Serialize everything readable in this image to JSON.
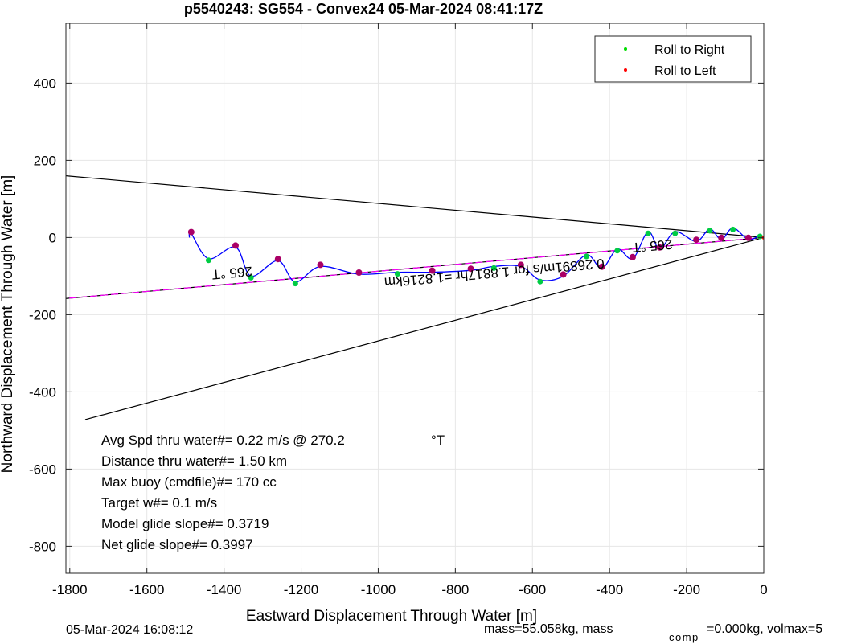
{
  "chart_data": {
    "type": "line",
    "title": "p5540243: SG554 - Convex24 05-Mar-2024 08:41:17Z",
    "xlabel": "Eastward Displacement Through Water [m]",
    "ylabel": "Northward Displacement Through Water [m]",
    "xlim": [
      -1810,
      0
    ],
    "ylim": [
      -870,
      555
    ],
    "xticks": [
      -1800,
      -1600,
      -1400,
      -1200,
      -1000,
      -800,
      -600,
      -400,
      -200,
      0
    ],
    "yticks": [
      -800,
      -600,
      -400,
      -200,
      0,
      200,
      400
    ],
    "grid": true,
    "legend_position": "top-right",
    "legend": [
      {
        "label": "Roll to Right",
        "color": "#00dd00"
      },
      {
        "label": "Roll to Left",
        "color": "#ff0000"
      }
    ],
    "lines": [
      {
        "color": "#000000",
        "points": [
          [
            0,
            0
          ],
          [
            -1810,
            160
          ]
        ]
      },
      {
        "color": "#000000",
        "points": [
          [
            0,
            0
          ],
          [
            -1760,
            -472
          ]
        ]
      },
      {
        "color": "#000000",
        "points": [
          [
            0,
            0
          ],
          [
            -1810,
            -158
          ]
        ]
      },
      {
        "color": "#ff00ff",
        "dashed": true,
        "points": [
          [
            0,
            0
          ],
          [
            -1810,
            -158
          ]
        ]
      }
    ],
    "track": {
      "color": "#0000ff",
      "centerline": [
        [
          0,
          0
        ],
        [
          -100,
          0
        ],
        [
          -200,
          -5
        ],
        [
          -300,
          -25
        ],
        [
          -420,
          -55
        ],
        [
          -580,
          -90
        ],
        [
          -800,
          -100
        ],
        [
          -1000,
          -100
        ],
        [
          -1150,
          -90
        ],
        [
          -1300,
          -70
        ],
        [
          -1400,
          -30
        ],
        [
          -1490,
          0
        ]
      ],
      "peaks": [
        [
          -10,
          7
        ],
        [
          -40,
          -5
        ],
        [
          -80,
          25
        ],
        [
          -110,
          -5
        ],
        [
          -140,
          22
        ],
        [
          -175,
          -10
        ],
        [
          -230,
          15
        ],
        [
          -270,
          -30
        ],
        [
          -300,
          15
        ],
        [
          -340,
          -55
        ],
        [
          -380,
          -30
        ],
        [
          -420,
          -80
        ],
        [
          -460,
          -45
        ],
        [
          -520,
          -100
        ],
        [
          -580,
          -110
        ],
        [
          -630,
          -75
        ],
        [
          -700,
          -75
        ],
        [
          -760,
          -85
        ],
        [
          -860,
          -90
        ],
        [
          -950,
          -90
        ],
        [
          -1050,
          -95
        ],
        [
          -1150,
          -75
        ],
        [
          -1215,
          -115
        ],
        [
          -1260,
          -60
        ],
        [
          -1330,
          -100
        ],
        [
          -1370,
          -25
        ],
        [
          -1440,
          -55
        ],
        [
          -1485,
          10
        ],
        [
          -1490,
          0
        ]
      ],
      "roll_right_points": [
        [
          -10,
          7
        ],
        [
          -80,
          25
        ],
        [
          -140,
          22
        ],
        [
          -230,
          15
        ],
        [
          -300,
          15
        ],
        [
          -380,
          -30
        ],
        [
          -460,
          -45
        ],
        [
          -580,
          -110
        ],
        [
          -700,
          -75
        ],
        [
          -950,
          -90
        ],
        [
          -1215,
          -115
        ],
        [
          -1330,
          -100
        ],
        [
          -1440,
          -55
        ]
      ],
      "roll_left_points": [
        [
          -40,
          -5
        ],
        [
          -110,
          -5
        ],
        [
          -175,
          -10
        ],
        [
          -270,
          -30
        ],
        [
          -340,
          -55
        ],
        [
          -420,
          -80
        ],
        [
          -520,
          -100
        ],
        [
          -630,
          -75
        ],
        [
          -760,
          -85
        ],
        [
          -860,
          -90
        ],
        [
          -1050,
          -95
        ],
        [
          -1150,
          -75
        ],
        [
          -1260,
          -60
        ],
        [
          -1370,
          -25
        ],
        [
          -1485,
          10
        ]
      ]
    },
    "annotations": [
      {
        "text": "265 °T",
        "x": -290,
        "y": -10,
        "rotate": 175
      },
      {
        "text": "265 °T",
        "x": -1380,
        "y": -80,
        "rotate": 175
      },
      {
        "text": "0.26891m/s for 1.8817hr =1.8216km",
        "x": -700,
        "y": -80,
        "rotate": 175
      }
    ]
  },
  "stats": {
    "line1_label": "Avg Spd thru water#=  0.22 m/s @ 270.2",
    "line1_unit": "°T",
    "line2": "Distance thru water#=  1.50 km",
    "line3": "Max buoy (cmdfile)#= 170 cc",
    "line4": "Target w#= 0.1 m/s",
    "line5": "Model glide slope#= 0.3719",
    "line6": "Net glide slope#= 0.3997"
  },
  "footer": {
    "timestamp": "05-Mar-2024 16:08:12",
    "mass_left": "mass=55.058kg, mass",
    "mass_sub": "comp",
    "mass_right": "=0.000kg, volmax=5"
  }
}
